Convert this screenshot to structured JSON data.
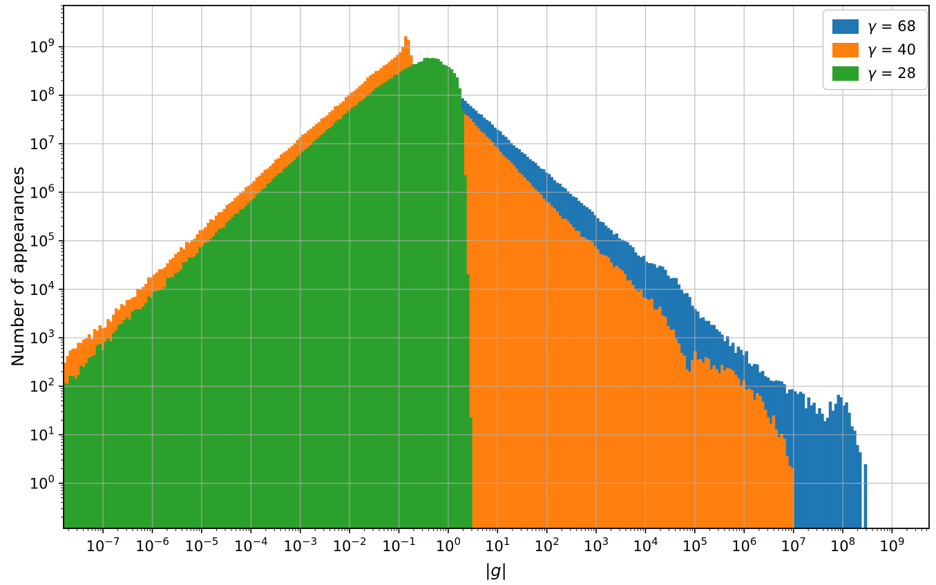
{
  "figure": {
    "background": "#ffffff"
  },
  "chart_data": {
    "type": "histogram",
    "title": "",
    "xlabel": "|g|",
    "ylabel": "Number of appearances",
    "xscale": "log",
    "yscale": "log",
    "xlim_log10": [
      -7.8,
      9.75
    ],
    "ylim_log10": [
      -0.93,
      9.85
    ],
    "xtick_exponents": [
      -7,
      -6,
      -5,
      -4,
      -3,
      -2,
      -1,
      0,
      1,
      2,
      3,
      4,
      5,
      6,
      7,
      8,
      9
    ],
    "ytick_exponents": [
      0,
      1,
      2,
      3,
      4,
      5,
      6,
      7,
      8,
      9
    ],
    "grid": {
      "show": true,
      "color": "#b0b0b0"
    },
    "bin_count": 320,
    "legend": {
      "position": "upper-right",
      "items": [
        {
          "label": "γ = 68",
          "color": "#1f77b4"
        },
        {
          "label": "γ = 40",
          "color": "#ff7f0e"
        },
        {
          "label": "γ = 28",
          "color": "#2ca02c"
        }
      ]
    },
    "series": [
      {
        "name": "gamma-68",
        "label": "γ = 68",
        "color": "#1f77b4",
        "seed": 1,
        "range_log10": [
          -7.8,
          8.55
        ],
        "profile_log10": [
          [
            -7.8,
            2.3
          ],
          [
            -7,
            3.0
          ],
          [
            -6,
            4.0
          ],
          [
            -5,
            5.0
          ],
          [
            -4,
            5.97
          ],
          [
            -3,
            6.92
          ],
          [
            -2,
            7.8
          ],
          [
            -1.5,
            8.2
          ],
          [
            -1.2,
            8.42
          ],
          [
            -1,
            8.56
          ],
          [
            -0.85,
            8.68
          ],
          [
            -0.7,
            8.6
          ],
          [
            -0.5,
            8.45
          ],
          [
            -0.3,
            8.28
          ],
          [
            -0.15,
            8.15
          ],
          [
            0,
            8.03
          ],
          [
            0.25,
            7.97
          ],
          [
            0.4,
            7.83
          ],
          [
            0.6,
            7.65
          ],
          [
            0.8,
            7.48
          ],
          [
            1,
            7.3
          ],
          [
            1.2,
            7.1
          ],
          [
            1.5,
            6.82
          ],
          [
            2,
            6.4
          ],
          [
            2.5,
            5.95
          ],
          [
            3,
            5.5
          ],
          [
            3.3,
            5.2
          ],
          [
            3.6,
            4.95
          ],
          [
            3.9,
            4.7
          ],
          [
            4.1,
            4.55
          ],
          [
            4.4,
            4.38
          ],
          [
            4.6,
            4.2
          ],
          [
            4.8,
            3.95
          ],
          [
            5,
            3.6
          ],
          [
            5.2,
            3.4
          ],
          [
            5.5,
            3.1
          ],
          [
            5.8,
            2.8
          ],
          [
            6,
            2.65
          ],
          [
            6.3,
            2.4
          ],
          [
            6.6,
            2.15
          ],
          [
            6.9,
            1.95
          ],
          [
            7.1,
            1.8
          ],
          [
            7.4,
            1.55
          ],
          [
            7.6,
            1.35
          ],
          [
            7.8,
            1.6
          ],
          [
            7.95,
            1.8
          ],
          [
            8.1,
            1.55
          ],
          [
            8.2,
            1.1
          ],
          [
            8.35,
            0.75
          ],
          [
            8.45,
            0.45
          ],
          [
            8.55,
            0.1
          ]
        ]
      },
      {
        "name": "gamma-40",
        "label": "γ = 40",
        "color": "#ff7f0e",
        "seed": 2,
        "range_log10": [
          -7.8,
          7.0
        ],
        "profile_log10": [
          [
            -7.8,
            2.55
          ],
          [
            -7,
            3.25
          ],
          [
            -6,
            4.25
          ],
          [
            -5,
            5.22
          ],
          [
            -4,
            6.18
          ],
          [
            -3,
            7.12
          ],
          [
            -2,
            8.0
          ],
          [
            -1.6,
            8.38
          ],
          [
            -1.3,
            8.6
          ],
          [
            -1.1,
            8.75
          ],
          [
            -0.95,
            8.92
          ],
          [
            -0.88,
            9.1
          ],
          [
            -0.84,
            9.32
          ],
          [
            -0.8,
            9.08
          ],
          [
            -0.76,
            8.85
          ],
          [
            -0.7,
            8.62
          ],
          [
            -0.6,
            8.45
          ],
          [
            -0.4,
            8.3
          ],
          [
            -0.2,
            8.15
          ],
          [
            0,
            8.0
          ],
          [
            0.2,
            7.8
          ],
          [
            0.4,
            7.55
          ],
          [
            0.6,
            7.35
          ],
          [
            0.8,
            7.12
          ],
          [
            1,
            6.9
          ],
          [
            1.5,
            6.35
          ],
          [
            2,
            5.8
          ],
          [
            2.5,
            5.3
          ],
          [
            3,
            4.85
          ],
          [
            3.5,
            4.35
          ],
          [
            4,
            3.85
          ],
          [
            4.3,
            3.55
          ],
          [
            4.6,
            3.1
          ],
          [
            4.8,
            2.5
          ],
          [
            4.9,
            2.2
          ],
          [
            5,
            2.65
          ],
          [
            5.2,
            2.55
          ],
          [
            5.5,
            2.35
          ],
          [
            5.8,
            2.2
          ],
          [
            6,
            2.05
          ],
          [
            6.2,
            1.85
          ],
          [
            6.4,
            1.6
          ],
          [
            6.6,
            1.25
          ],
          [
            6.8,
            0.85
          ],
          [
            6.9,
            0.5
          ],
          [
            7,
            0.1
          ]
        ]
      },
      {
        "name": "gamma-28",
        "label": "γ = 28",
        "color": "#2ca02c",
        "seed": 3,
        "range_log10": [
          -7.8,
          0.5
        ],
        "profile_log10": [
          [
            -7.8,
            2.0
          ],
          [
            -7,
            2.85
          ],
          [
            -6,
            3.85
          ],
          [
            -5,
            4.85
          ],
          [
            -4,
            5.83
          ],
          [
            -3,
            6.78
          ],
          [
            -2,
            7.68
          ],
          [
            -1.5,
            8.1
          ],
          [
            -1.2,
            8.32
          ],
          [
            -1,
            8.45
          ],
          [
            -0.8,
            8.58
          ],
          [
            -0.6,
            8.68
          ],
          [
            -0.45,
            8.76
          ],
          [
            -0.3,
            8.78
          ],
          [
            -0.2,
            8.73
          ],
          [
            -0.1,
            8.65
          ],
          [
            0,
            8.57
          ],
          [
            0.1,
            8.5
          ],
          [
            0.2,
            8.35
          ],
          [
            0.28,
            7.9
          ],
          [
            0.33,
            6.8
          ],
          [
            0.38,
            5.2
          ],
          [
            0.42,
            3.2
          ],
          [
            0.45,
            1.6
          ],
          [
            0.48,
            0.6
          ],
          [
            0.5,
            0.1
          ]
        ]
      }
    ],
    "draw_order": [
      "gamma-68",
      "gamma-40",
      "gamma-28"
    ]
  }
}
